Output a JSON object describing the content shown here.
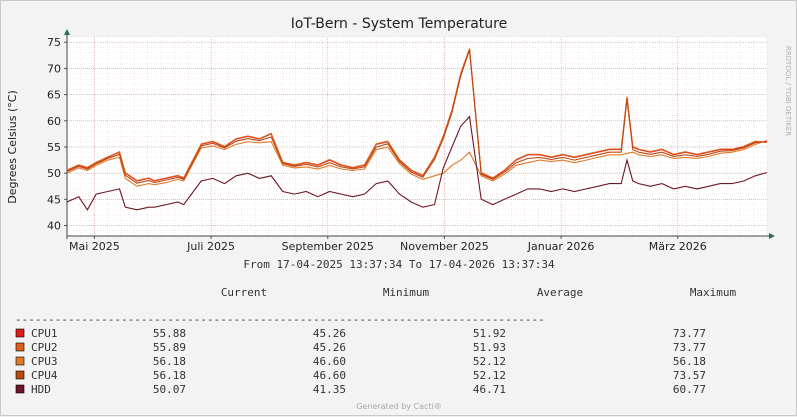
{
  "chart_data": {
    "type": "line",
    "title": "IoT-Bern - System Temperature",
    "ylabel": "Degrees Celsius (°C)",
    "watermark": "RRDTOOL / TOBI OETIKER",
    "ylim": [
      38,
      76
    ],
    "yticks": [
      40,
      45,
      50,
      55,
      60,
      65,
      70,
      75
    ],
    "x_categories": [
      "Mai 2025",
      "Juli 2025",
      "September 2025",
      "November 2025",
      "Januar 2026",
      "März 2026"
    ],
    "x_ticks_month_index": [
      0.47,
      2.47,
      4.47,
      6.47,
      8.47,
      10.47
    ],
    "x_range_months": [
      0,
      12
    ],
    "time_range_text": "From 17-04-2025 13:37:34 To 17-04-2026 13:37:34",
    "grid": true,
    "series": [
      {
        "name": "CPU1",
        "color": "#e01b1b",
        "current": "55.88",
        "minimum": "45.26",
        "average": "51.92",
        "maximum": "73.77",
        "x": [
          0,
          0.2,
          0.35,
          0.5,
          0.7,
          0.9,
          1.0,
          1.2,
          1.4,
          1.5,
          1.7,
          1.9,
          2.0,
          2.3,
          2.5,
          2.7,
          2.9,
          3.1,
          3.3,
          3.5,
          3.7,
          3.9,
          4.1,
          4.3,
          4.5,
          4.7,
          4.9,
          5.1,
          5.3,
          5.5,
          5.7,
          5.9,
          6.1,
          6.3,
          6.45,
          6.6,
          6.75,
          6.9,
          7.1,
          7.3,
          7.5,
          7.7,
          7.9,
          8.1,
          8.3,
          8.5,
          8.7,
          8.9,
          9.1,
          9.3,
          9.5,
          9.6,
          9.7,
          9.8,
          10.0,
          10.2,
          10.4,
          10.6,
          10.8,
          11.0,
          11.2,
          11.4,
          11.6,
          11.8,
          12.0
        ],
        "values": [
          50.5,
          51.5,
          51.0,
          52.0,
          53.0,
          54.0,
          50.0,
          48.5,
          49.0,
          48.5,
          49.0,
          49.5,
          49.0,
          55.5,
          56.0,
          55.0,
          56.5,
          57.0,
          56.5,
          57.5,
          52.0,
          51.5,
          52.0,
          51.5,
          52.5,
          51.5,
          51.0,
          51.5,
          55.5,
          56.0,
          52.5,
          50.5,
          49.5,
          53.0,
          57.0,
          62.0,
          69.0,
          73.7,
          50.0,
          49.0,
          50.5,
          52.5,
          53.5,
          53.5,
          53.0,
          53.5,
          53.0,
          53.5,
          54.0,
          54.5,
          54.5,
          64.5,
          55.0,
          54.5,
          54.0,
          54.5,
          53.5,
          54.0,
          53.5,
          54.0,
          54.5,
          54.5,
          55.0,
          56.0,
          55.9
        ]
      },
      {
        "name": "CPU2",
        "color": "#e0601b",
        "current": "55.89",
        "minimum": "45.26",
        "average": "51.93",
        "maximum": "73.77",
        "x": [
          0,
          0.2,
          0.35,
          0.5,
          0.7,
          0.9,
          1.0,
          1.2,
          1.4,
          1.5,
          1.7,
          1.9,
          2.0,
          2.3,
          2.5,
          2.7,
          2.9,
          3.1,
          3.3,
          3.5,
          3.7,
          3.9,
          4.1,
          4.3,
          4.5,
          4.7,
          4.9,
          5.1,
          5.3,
          5.5,
          5.7,
          5.9,
          6.1,
          6.3,
          6.45,
          6.6,
          6.75,
          6.9,
          7.1,
          7.3,
          7.5,
          7.7,
          7.9,
          8.1,
          8.3,
          8.5,
          8.7,
          8.9,
          9.1,
          9.3,
          9.5,
          9.6,
          9.7,
          9.8,
          10.0,
          10.2,
          10.4,
          10.6,
          10.8,
          11.0,
          11.2,
          11.4,
          11.6,
          11.8,
          12.0
        ],
        "values": [
          50.6,
          51.6,
          51.1,
          52.1,
          53.1,
          54.1,
          50.1,
          48.6,
          49.1,
          48.6,
          49.1,
          49.6,
          49.1,
          55.6,
          56.1,
          55.1,
          56.6,
          57.1,
          56.6,
          57.6,
          52.1,
          51.6,
          52.1,
          51.6,
          52.6,
          51.6,
          51.1,
          51.6,
          55.6,
          56.1,
          52.6,
          50.6,
          49.6,
          53.1,
          57.1,
          62.1,
          69.1,
          73.8,
          50.1,
          49.1,
          50.6,
          52.6,
          53.6,
          53.6,
          53.1,
          53.6,
          53.1,
          53.6,
          54.1,
          54.6,
          54.6,
          64.6,
          55.1,
          54.6,
          54.1,
          54.6,
          53.6,
          54.1,
          53.6,
          54.1,
          54.6,
          54.6,
          55.1,
          56.1,
          55.9
        ]
      },
      {
        "name": "CPU3",
        "color": "#e07a2a",
        "current": "56.18",
        "minimum": "46.60",
        "average": "52.12",
        "maximum": "56.18",
        "x": [
          0,
          0.2,
          0.35,
          0.5,
          0.7,
          0.9,
          1.0,
          1.2,
          1.4,
          1.5,
          1.7,
          1.9,
          2.0,
          2.3,
          2.5,
          2.7,
          2.9,
          3.1,
          3.3,
          3.5,
          3.7,
          3.9,
          4.1,
          4.3,
          4.5,
          4.7,
          4.9,
          5.1,
          5.3,
          5.5,
          5.7,
          5.9,
          6.1,
          6.3,
          6.45,
          6.6,
          6.75,
          6.9,
          7.1,
          7.3,
          7.5,
          7.7,
          7.9,
          8.1,
          8.3,
          8.5,
          8.7,
          8.9,
          9.1,
          9.3,
          9.5,
          9.6,
          9.7,
          9.8,
          10.0,
          10.2,
          10.4,
          10.6,
          10.8,
          11.0,
          11.2,
          11.4,
          11.6,
          11.8,
          12.0
        ],
        "values": [
          50.0,
          51.0,
          50.5,
          51.5,
          52.5,
          53.0,
          49.0,
          47.5,
          48.0,
          47.8,
          48.2,
          48.8,
          48.5,
          54.8,
          55.2,
          54.5,
          55.5,
          56.0,
          55.8,
          56.0,
          51.5,
          51.0,
          51.2,
          50.8,
          51.5,
          50.8,
          50.5,
          50.8,
          54.5,
          55.0,
          51.8,
          49.8,
          48.8,
          49.5,
          50.0,
          51.5,
          52.5,
          54.0,
          49.5,
          48.5,
          49.8,
          51.5,
          52.0,
          52.5,
          52.2,
          52.5,
          52.0,
          52.5,
          53.0,
          53.5,
          53.5,
          53.8,
          54.0,
          53.5,
          53.2,
          53.5,
          52.8,
          53.0,
          52.8,
          53.2,
          53.8,
          54.0,
          54.5,
          55.5,
          56.2
        ]
      },
      {
        "name": "CPU4",
        "color": "#b84a12",
        "current": "56.18",
        "minimum": "46.60",
        "average": "52.12",
        "maximum": "73.57",
        "x": [
          0,
          0.2,
          0.35,
          0.5,
          0.7,
          0.9,
          1.0,
          1.2,
          1.4,
          1.5,
          1.7,
          1.9,
          2.0,
          2.3,
          2.5,
          2.7,
          2.9,
          3.1,
          3.3,
          3.5,
          3.7,
          3.9,
          4.1,
          4.3,
          4.5,
          4.7,
          4.9,
          5.1,
          5.3,
          5.5,
          5.7,
          5.9,
          6.1,
          6.3,
          6.45,
          6.6,
          6.75,
          6.9,
          7.1,
          7.3,
          7.5,
          7.7,
          7.9,
          8.1,
          8.3,
          8.5,
          8.7,
          8.9,
          9.1,
          9.3,
          9.5,
          9.6,
          9.7,
          9.8,
          10.0,
          10.2,
          10.4,
          10.6,
          10.8,
          11.0,
          11.2,
          11.4,
          11.6,
          11.8,
          12.0
        ],
        "values": [
          50.3,
          51.3,
          50.8,
          51.8,
          52.8,
          53.6,
          49.6,
          48.1,
          48.6,
          48.2,
          48.7,
          49.2,
          48.8,
          55.2,
          55.7,
          54.8,
          56.1,
          56.6,
          56.2,
          56.9,
          51.8,
          51.3,
          51.7,
          51.2,
          52.0,
          51.2,
          50.8,
          51.2,
          55.0,
          55.6,
          52.2,
          50.2,
          49.2,
          52.6,
          56.6,
          61.6,
          68.6,
          73.5,
          49.8,
          48.8,
          50.2,
          52.0,
          52.8,
          53.0,
          52.6,
          53.0,
          52.5,
          53.0,
          53.5,
          54.0,
          54.0,
          64.0,
          54.5,
          54.0,
          53.6,
          54.0,
          53.2,
          53.5,
          53.2,
          53.6,
          54.2,
          54.3,
          54.8,
          55.8,
          56.1
        ]
      },
      {
        "name": "HDD",
        "color": "#6e1525",
        "current": "50.07",
        "minimum": "41.35",
        "average": "46.71",
        "maximum": "60.77",
        "x": [
          0,
          0.2,
          0.35,
          0.5,
          0.7,
          0.9,
          1.0,
          1.2,
          1.4,
          1.5,
          1.7,
          1.9,
          2.0,
          2.3,
          2.5,
          2.7,
          2.9,
          3.1,
          3.3,
          3.5,
          3.7,
          3.9,
          4.1,
          4.3,
          4.5,
          4.7,
          4.9,
          5.1,
          5.3,
          5.5,
          5.7,
          5.9,
          6.1,
          6.3,
          6.45,
          6.6,
          6.75,
          6.9,
          7.1,
          7.3,
          7.5,
          7.7,
          7.9,
          8.1,
          8.3,
          8.5,
          8.7,
          8.9,
          9.1,
          9.3,
          9.5,
          9.6,
          9.7,
          9.8,
          10.0,
          10.2,
          10.4,
          10.6,
          10.8,
          11.0,
          11.2,
          11.4,
          11.6,
          11.8,
          12.0
        ],
        "values": [
          44.5,
          45.5,
          43.0,
          46.0,
          46.5,
          47.0,
          43.5,
          43.0,
          43.5,
          43.5,
          44.0,
          44.5,
          44.0,
          48.5,
          49.0,
          48.0,
          49.5,
          50.0,
          49.0,
          49.5,
          46.5,
          46.0,
          46.5,
          45.5,
          46.5,
          46.0,
          45.5,
          46.0,
          48.0,
          48.5,
          46.0,
          44.5,
          43.5,
          44.0,
          51.0,
          55.0,
          59.0,
          60.8,
          45.0,
          44.0,
          45.0,
          46.0,
          47.0,
          47.0,
          46.5,
          47.0,
          46.5,
          47.0,
          47.5,
          48.0,
          48.0,
          52.5,
          48.5,
          48.0,
          47.5,
          48.0,
          47.0,
          47.5,
          47.0,
          47.5,
          48.0,
          48.0,
          48.5,
          49.5,
          50.1
        ]
      }
    ]
  },
  "legend": {
    "headers": [
      "Current",
      "Minimum",
      "Average",
      "Maximum"
    ],
    "separator": "--------------------------------------------------------------------------------"
  },
  "footer": "Generated by Cacti®"
}
